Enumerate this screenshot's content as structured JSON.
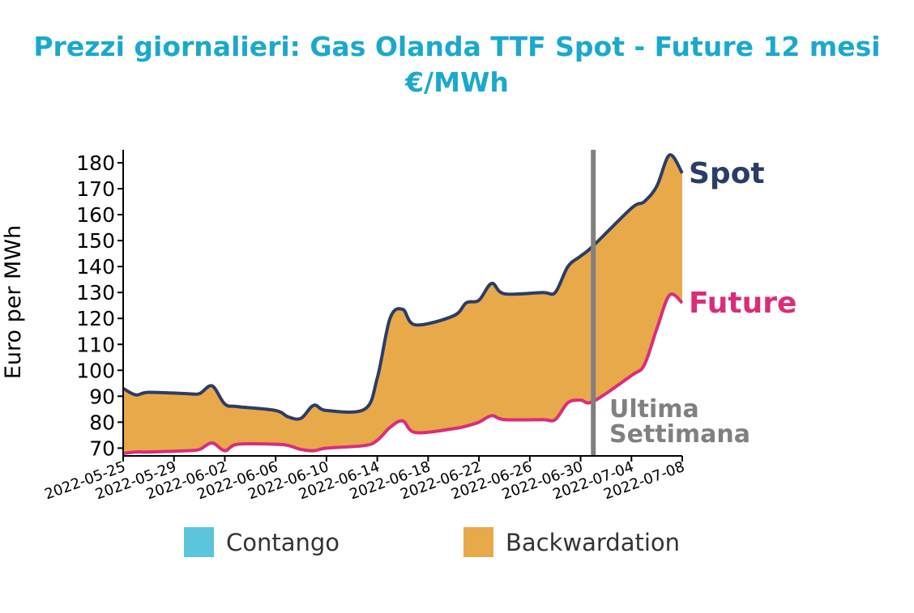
{
  "chart_data": {
    "type": "area",
    "title_line1": "Prezzi giornalieri: Gas Olanda TTF Spot - Future 12 mesi",
    "title_line2": "€/MWh",
    "xlabel": "",
    "ylabel": "Euro per MWh",
    "ylim": [
      67,
      185
    ],
    "yticks": [
      70,
      80,
      90,
      100,
      110,
      120,
      130,
      140,
      150,
      160,
      170,
      180
    ],
    "xlim": [
      "2022-05-25",
      "2022-07-08"
    ],
    "xticks": [
      "2022-05-25",
      "2022-05-29",
      "2022-06-02",
      "2022-06-06",
      "2022-06-10",
      "2022-06-14",
      "2022-06-18",
      "2022-06-22",
      "2022-06-26",
      "2022-06-30",
      "2022-07-04",
      "2022-07-08"
    ],
    "grid": false,
    "series": [
      {
        "name": "Spot",
        "color": "#2b3d66",
        "points": [
          [
            "2022-05-25",
            93
          ],
          [
            "2022-05-26",
            90.5
          ],
          [
            "2022-05-27",
            91.5
          ],
          [
            "2022-05-30",
            91
          ],
          [
            "2022-05-31",
            91
          ],
          [
            "2022-06-01",
            94
          ],
          [
            "2022-06-02",
            87
          ],
          [
            "2022-06-03",
            86
          ],
          [
            "2022-06-06",
            84.5
          ],
          [
            "2022-06-07",
            82
          ],
          [
            "2022-06-08",
            81.5
          ],
          [
            "2022-06-09",
            86.5
          ],
          [
            "2022-06-10",
            84.5
          ],
          [
            "2022-06-13",
            85
          ],
          [
            "2022-06-14",
            97
          ],
          [
            "2022-06-15",
            120
          ],
          [
            "2022-06-16",
            123.5
          ],
          [
            "2022-06-17",
            117.5
          ],
          [
            "2022-06-20",
            121
          ],
          [
            "2022-06-21",
            126
          ],
          [
            "2022-06-22",
            127
          ],
          [
            "2022-06-23",
            133.5
          ],
          [
            "2022-06-24",
            129.5
          ],
          [
            "2022-06-27",
            130
          ],
          [
            "2022-06-28",
            130
          ],
          [
            "2022-06-29",
            140
          ],
          [
            "2022-06-30",
            144
          ],
          [
            "2022-07-01",
            148
          ],
          [
            "2022-07-04",
            162.5
          ],
          [
            "2022-07-05",
            165
          ],
          [
            "2022-07-06",
            171
          ],
          [
            "2022-07-07",
            183
          ],
          [
            "2022-07-08",
            176
          ]
        ]
      },
      {
        "name": "Future",
        "color": "#d92d7a",
        "points": [
          [
            "2022-05-25",
            68
          ],
          [
            "2022-05-26",
            68.5
          ],
          [
            "2022-05-27",
            68.5
          ],
          [
            "2022-05-30",
            69
          ],
          [
            "2022-05-31",
            69.5
          ],
          [
            "2022-06-01",
            72
          ],
          [
            "2022-06-02",
            69
          ],
          [
            "2022-06-03",
            71.5
          ],
          [
            "2022-06-06",
            71.5
          ],
          [
            "2022-06-07",
            71
          ],
          [
            "2022-06-08",
            69.5
          ],
          [
            "2022-06-09",
            69
          ],
          [
            "2022-06-10",
            70
          ],
          [
            "2022-06-13",
            71
          ],
          [
            "2022-06-14",
            73
          ],
          [
            "2022-06-15",
            78
          ],
          [
            "2022-06-16",
            80.5
          ],
          [
            "2022-06-17",
            76
          ],
          [
            "2022-06-20",
            77.5
          ],
          [
            "2022-06-21",
            78.5
          ],
          [
            "2022-06-22",
            80
          ],
          [
            "2022-06-23",
            82.5
          ],
          [
            "2022-06-24",
            81
          ],
          [
            "2022-06-27",
            81
          ],
          [
            "2022-06-28",
            81
          ],
          [
            "2022-06-29",
            87.5
          ],
          [
            "2022-06-30",
            88.5
          ],
          [
            "2022-07-01",
            88
          ],
          [
            "2022-07-04",
            98
          ],
          [
            "2022-07-05",
            102
          ],
          [
            "2022-07-06",
            116
          ],
          [
            "2022-07-07",
            129
          ],
          [
            "2022-07-08",
            126
          ]
        ]
      }
    ],
    "fill_between_color": "#e8a94b",
    "vline": {
      "date": "2022-07-01",
      "color": "#808080"
    },
    "annotation": [
      "Ultima",
      "Settimana"
    ],
    "legend": {
      "placement": "bottom",
      "items": [
        {
          "label": "Contango",
          "color": "#5bc5db"
        },
        {
          "label": "Backwardation",
          "color": "#e8a94b"
        }
      ]
    }
  }
}
